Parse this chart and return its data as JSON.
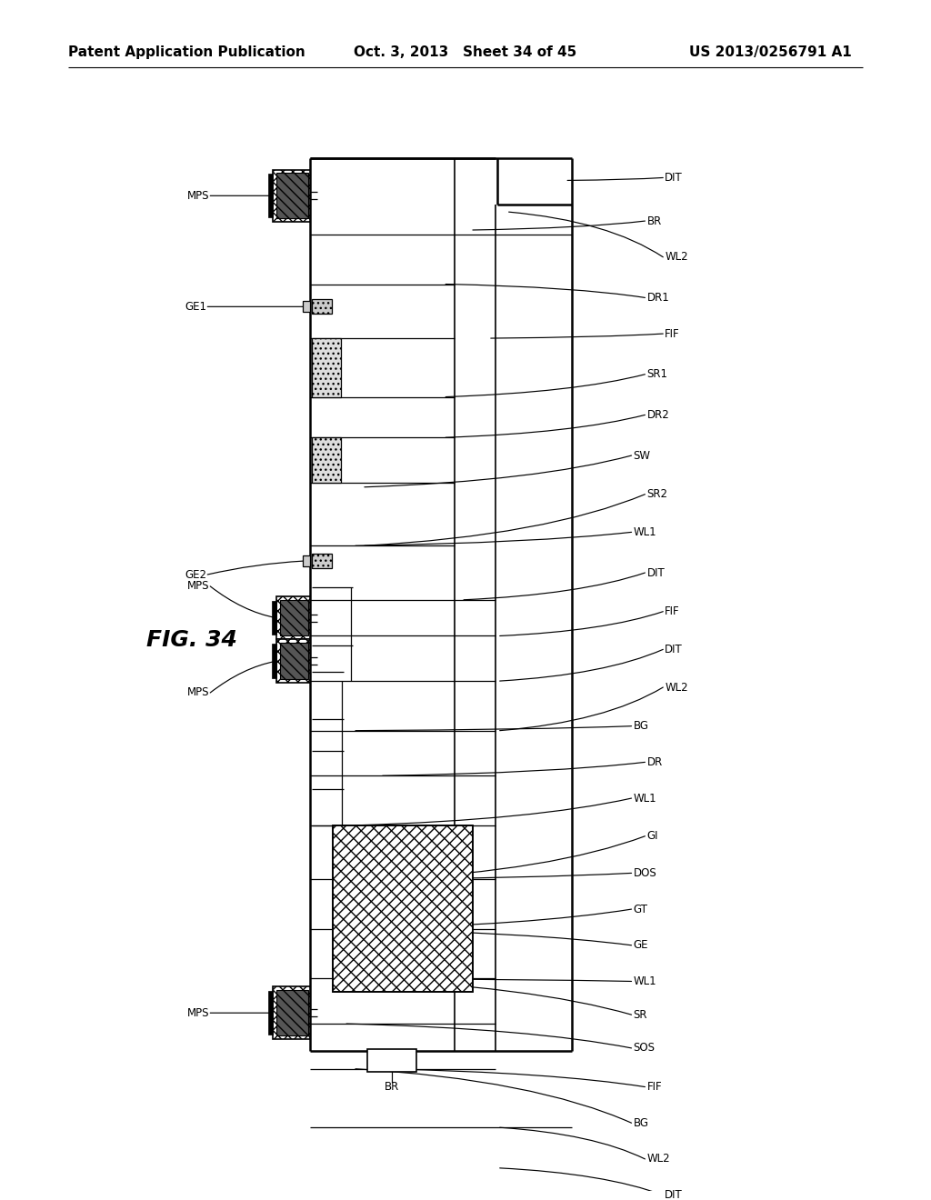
{
  "header_left": "Patent Application Publication",
  "header_center": "Oct. 3, 2013   Sheet 34 of 45",
  "header_right": "US 2013/0256791 A1",
  "fig_label": "FIG. 34",
  "bg_color": "#ffffff",
  "lc": "#000000"
}
